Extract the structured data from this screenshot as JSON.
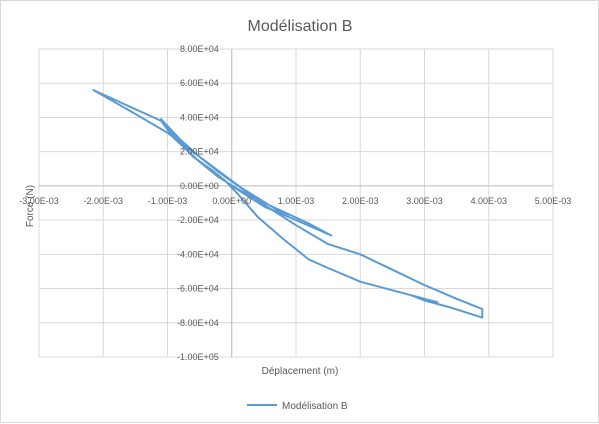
{
  "chart_data": {
    "type": "line",
    "title": "Modélisation B",
    "xlabel": "Déplacement (m)",
    "ylabel": "Force (N)",
    "xlim": [
      -0.003,
      0.005
    ],
    "ylim": [
      -100000,
      80000
    ],
    "x_ticks": [
      -0.003,
      -0.002,
      -0.001,
      0,
      0.001,
      0.002,
      0.003,
      0.004,
      0.005
    ],
    "x_tick_labels": [
      "-3.00E-03",
      "-2.00E-03",
      "-1.00E-03",
      "0.00E+00",
      "1.00E-03",
      "2.00E-03",
      "3.00E-03",
      "4.00E-03",
      "5.00E-03"
    ],
    "y_ticks": [
      80000,
      60000,
      40000,
      20000,
      0,
      -20000,
      -40000,
      -60000,
      -80000,
      -100000
    ],
    "y_tick_labels": [
      "8.00E+04",
      "6.00E+04",
      "4.00E+04",
      "2.00E+04",
      "0.00E+00",
      "-2.00E+04",
      "-4.00E+04",
      "-6.00E+04",
      "-8.00E+04",
      "-1.00E+05"
    ],
    "grid": true,
    "legend_position": "bottom",
    "color": "#5b9bd5",
    "series": [
      {
        "name": "Modélisation B",
        "segments": [
          {
            "x": [
              0,
              0.0005,
              0.001,
              0.00155
            ],
            "y": [
              0,
              -12000,
              -20000,
              -29000
            ]
          },
          {
            "x": [
              0.00155,
              0.0012,
              0.0008,
              0.0004,
              0.0001,
              -0.0002,
              -0.0005,
              -0.0009,
              -0.0011,
              -0.00215
            ],
            "y": [
              -29000,
              -22000,
              -15000,
              -8000,
              -2000,
              5000,
              14000,
              28000,
              38000,
              56000
            ]
          },
          {
            "x": [
              -0.00215,
              -0.0015,
              -0.001,
              -0.0005,
              0,
              0.0005,
              0.001,
              0.0015,
              0.002,
              0.0025,
              0.003,
              0.0035,
              0.0039
            ],
            "y": [
              56000,
              42000,
              31000,
              17000,
              3000,
              -11000,
              -23000,
              -34000,
              -40000,
              -49000,
              -58000,
              -66000,
              -72000
            ]
          },
          {
            "x": [
              0.0039,
              0.0039
            ],
            "y": [
              -72000,
              -77000
            ]
          },
          {
            "x": [
              0.0039,
              0.0034,
              0.003,
              0.0028,
              0.0032,
              0.0025,
              0.002,
              0.0015,
              0.0012,
              0.0008,
              0.0004,
              0.0001,
              -0.0001,
              -0.0003,
              -0.0006,
              -0.0009,
              -0.0011
            ],
            "y": [
              -77000,
              -71000,
              -67000,
              -64000,
              -68000,
              -61000,
              -56000,
              -48000,
              -43000,
              -31000,
              -18000,
              -5000,
              3000,
              9000,
              17000,
              30000,
              39000
            ]
          },
          {
            "x": [
              -0.0011,
              -0.0008,
              -0.0005,
              -0.0002,
              0.0001,
              0.0004,
              0.0007,
              0.0009
            ],
            "y": [
              39000,
              27000,
              17000,
              8000,
              0,
              -7000,
              -14000,
              -17000
            ]
          }
        ]
      }
    ]
  }
}
